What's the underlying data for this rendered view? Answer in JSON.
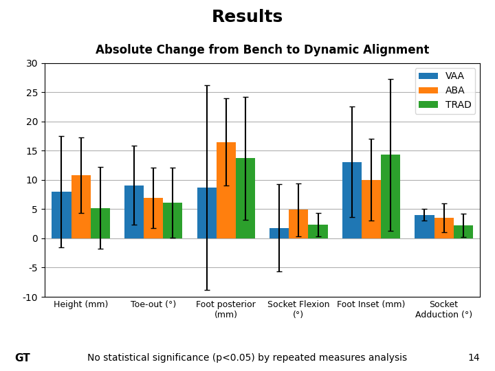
{
  "chart_data": {
    "type": "bar",
    "title": "Results",
    "subtitle": "Absolute Change from Bench to Dynamic Alignment",
    "categories": [
      "Height (mm)",
      "Toe-out (°)",
      "Foot posterior\n(mm)",
      "Socket Flexion\n(°)",
      "Foot Inset (mm)",
      "Socket\nAdduction (°)"
    ],
    "series": [
      {
        "name": "VAA",
        "values": [
          8.0,
          9.1,
          8.7,
          1.8,
          13.1,
          4.0
        ],
        "errors": [
          9.5,
          6.8,
          17.5,
          7.5,
          9.5,
          1.0
        ]
      },
      {
        "name": "ABA",
        "values": [
          10.8,
          6.9,
          16.5,
          4.9,
          10.0,
          3.5
        ],
        "errors": [
          6.5,
          5.2,
          7.5,
          4.5,
          7.0,
          2.5
        ]
      },
      {
        "name": "TRAD",
        "values": [
          5.2,
          6.1,
          13.7,
          2.4,
          14.3,
          2.2
        ],
        "errors": [
          7.0,
          6.0,
          10.5,
          2.0,
          13.0,
          2.0
        ]
      }
    ],
    "ylim": [
      -10,
      30
    ],
    "yticks": [
      -10,
      -5,
      0,
      5,
      10,
      15,
      20,
      25,
      30
    ],
    "grid": true,
    "legend": "upper right",
    "annotations": [
      "No statistical significance (p<0.05) by repeated measures analysis",
      "14",
      "GT"
    ]
  }
}
